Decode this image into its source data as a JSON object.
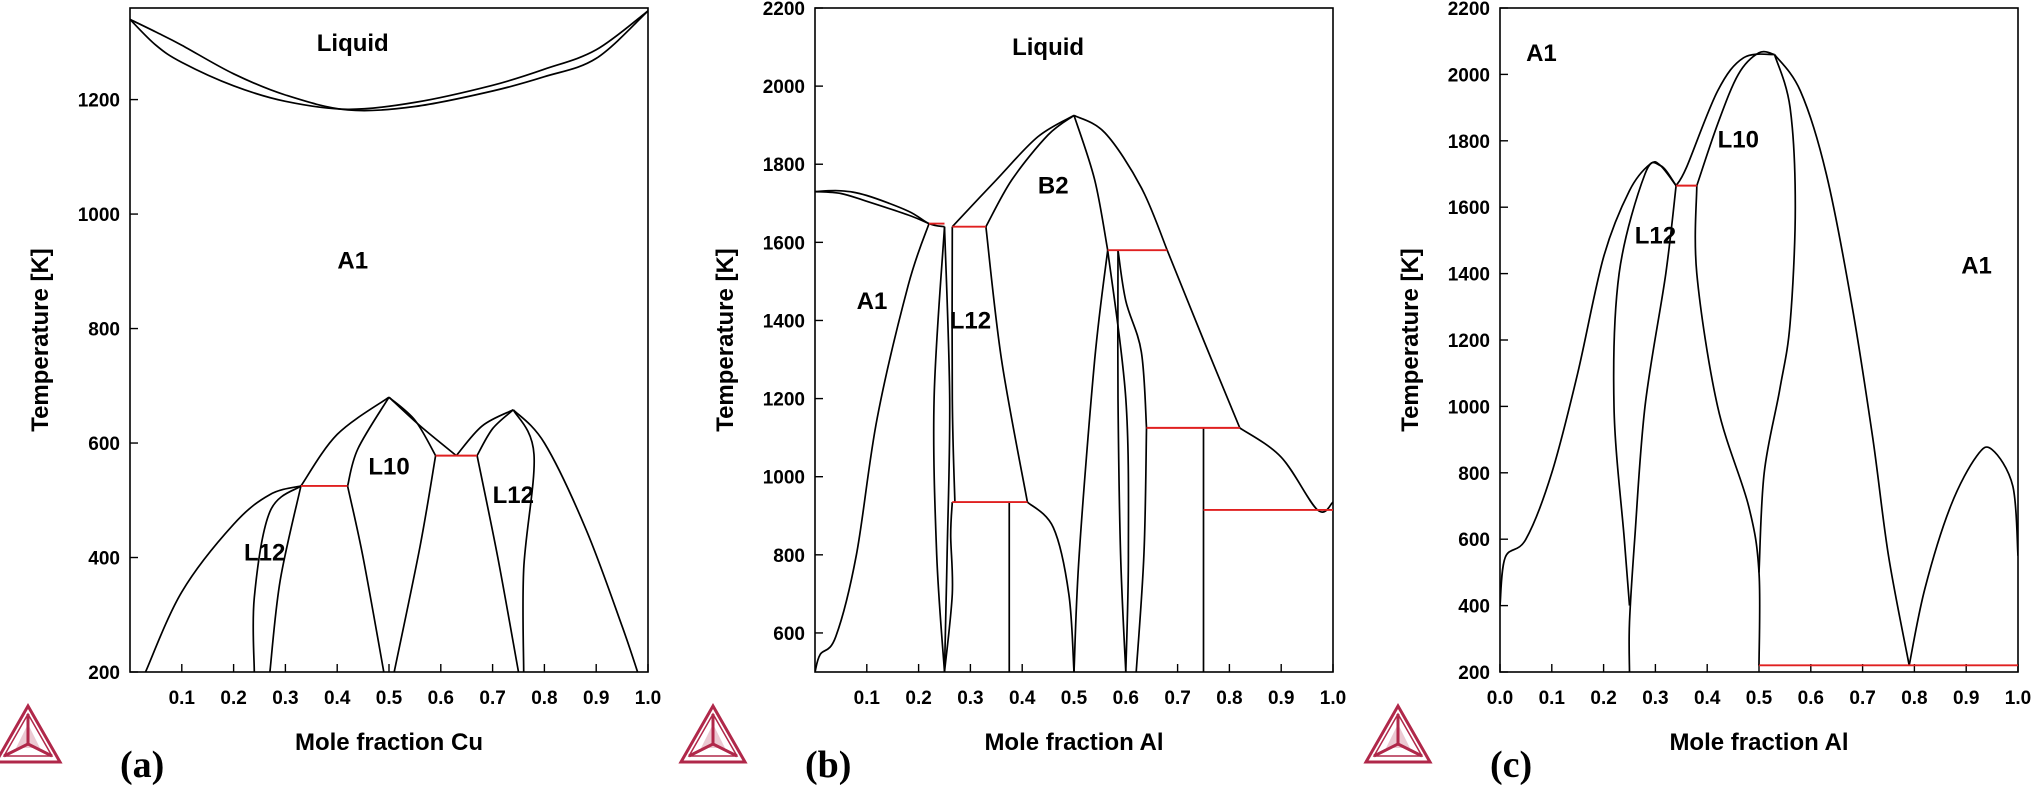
{
  "colors": {
    "phase_boundary": "#000000",
    "tie_line": "#e02020",
    "logo": "#b0284a"
  },
  "icons": [
    "thermo-calc-triangle-logo-icon"
  ],
  "chart_data": [
    {
      "type": "line",
      "panel_label": "(a)",
      "xlabel": "Mole fraction Cu",
      "ylabel": "Temperature [K]",
      "xlim": [
        0,
        1
      ],
      "ylim": [
        200,
        1360
      ],
      "xticks": [
        0.1,
        0.2,
        0.3,
        0.4,
        0.5,
        0.6,
        0.7,
        0.8,
        0.9,
        1.0
      ],
      "xtick_labels": [
        "0.1",
        "0.2",
        "0.3",
        "0.4",
        "0.5",
        "0.6",
        "0.7",
        "0.8",
        "0.9",
        "1.0"
      ],
      "yticks": [
        200,
        400,
        600,
        800,
        1000,
        1200
      ],
      "ytick_labels": [
        "200",
        "400",
        "600",
        "800",
        "1000",
        "1200"
      ],
      "grid": false,
      "phase_labels": [
        {
          "text": "Liquid",
          "x": 0.43,
          "y": 1285
        },
        {
          "text": "A1",
          "x": 0.43,
          "y": 905
        },
        {
          "text": "L12",
          "x": 0.26,
          "y": 395
        },
        {
          "text": "L10",
          "x": 0.5,
          "y": 545
        },
        {
          "text": "L12",
          "x": 0.74,
          "y": 495
        }
      ],
      "curves": [
        [
          [
            0,
            1340
          ],
          [
            0.05,
            1295
          ],
          [
            0.1,
            1265
          ],
          [
            0.2,
            1224
          ],
          [
            0.3,
            1197
          ],
          [
            0.42,
            1183
          ],
          [
            0.55,
            1195
          ],
          [
            0.7,
            1225
          ],
          [
            0.8,
            1253
          ],
          [
            0.9,
            1287
          ],
          [
            1.0,
            1355
          ]
        ],
        [
          [
            0,
            1340
          ],
          [
            0.05,
            1318
          ],
          [
            0.1,
            1295
          ],
          [
            0.2,
            1245
          ],
          [
            0.3,
            1208
          ],
          [
            0.42,
            1182
          ],
          [
            0.55,
            1188
          ],
          [
            0.7,
            1215
          ],
          [
            0.8,
            1240
          ],
          [
            0.9,
            1272
          ],
          [
            1.0,
            1355
          ]
        ],
        [
          [
            0.03,
            200
          ],
          [
            0.1,
            340
          ],
          [
            0.2,
            458
          ],
          [
            0.27,
            510
          ],
          [
            0.33,
            525
          ]
        ],
        [
          [
            0.24,
            200
          ],
          [
            0.24,
            330
          ],
          [
            0.27,
            480
          ],
          [
            0.33,
            525
          ]
        ],
        [
          [
            0.27,
            200
          ],
          [
            0.29,
            360
          ],
          [
            0.33,
            525
          ]
        ],
        [
          [
            0.33,
            525
          ],
          [
            0.4,
            615
          ],
          [
            0.5,
            680
          ]
        ],
        [
          [
            0.42,
            525
          ],
          [
            0.44,
            590
          ],
          [
            0.5,
            680
          ]
        ],
        [
          [
            0.42,
            525
          ],
          [
            0.45,
            400
          ],
          [
            0.49,
            200
          ]
        ],
        [
          [
            0.51,
            200
          ],
          [
            0.56,
            420
          ],
          [
            0.59,
            578
          ]
        ],
        [
          [
            0.5,
            680
          ],
          [
            0.56,
            630
          ],
          [
            0.63,
            578
          ]
        ],
        [
          [
            0.5,
            680
          ],
          [
            0.55,
            640
          ],
          [
            0.59,
            578
          ]
        ],
        [
          [
            0.63,
            578
          ],
          [
            0.68,
            630
          ],
          [
            0.74,
            658
          ]
        ],
        [
          [
            0.67,
            578
          ],
          [
            0.7,
            625
          ],
          [
            0.74,
            658
          ]
        ],
        [
          [
            0.67,
            578
          ],
          [
            0.71,
            400
          ],
          [
            0.75,
            200
          ]
        ],
        [
          [
            0.74,
            658
          ],
          [
            0.78,
            580
          ],
          [
            0.76,
            380
          ],
          [
            0.76,
            200
          ]
        ],
        [
          [
            0.74,
            658
          ],
          [
            0.8,
            600
          ],
          [
            0.88,
            450
          ],
          [
            0.95,
            280
          ],
          [
            0.98,
            200
          ]
        ]
      ],
      "tie_lines": [
        [
          [
            0.33,
            525
          ],
          [
            0.42,
            525
          ]
        ],
        [
          [
            0.59,
            578
          ],
          [
            0.67,
            578
          ]
        ]
      ]
    },
    {
      "type": "line",
      "panel_label": "(b)",
      "xlabel": "Mole fraction Al",
      "ylabel": "Temperature [K]",
      "xlim": [
        0,
        1
      ],
      "ylim": [
        500,
        2200
      ],
      "xticks": [
        0.1,
        0.2,
        0.3,
        0.4,
        0.5,
        0.6,
        0.7,
        0.8,
        0.9,
        1.0
      ],
      "xtick_labels": [
        "0.1",
        "0.2",
        "0.3",
        "0.4",
        "0.5",
        "0.6",
        "0.7",
        "0.8",
        "0.9",
        "1.0"
      ],
      "yticks": [
        600,
        800,
        1000,
        1200,
        1400,
        1600,
        1800,
        2000,
        2200
      ],
      "ytick_labels": [
        "600",
        "800",
        "1000",
        "1200",
        "1400",
        "1600",
        "1800",
        "2000",
        "2200"
      ],
      "grid": false,
      "phase_labels": [
        {
          "text": "Liquid",
          "x": 0.45,
          "y": 2080
        },
        {
          "text": "B2",
          "x": 0.46,
          "y": 1725
        },
        {
          "text": "A1",
          "x": 0.11,
          "y": 1430
        },
        {
          "text": "L12",
          "x": 0.3,
          "y": 1380
        }
      ],
      "curves": [
        [
          [
            0,
            1730
          ],
          [
            0.05,
            1732
          ],
          [
            0.1,
            1720
          ],
          [
            0.18,
            1680
          ],
          [
            0.22,
            1648
          ],
          [
            0.25,
            1640
          ]
        ],
        [
          [
            0,
            1730
          ],
          [
            0.05,
            1725
          ],
          [
            0.1,
            1705
          ],
          [
            0.18,
            1670
          ],
          [
            0.22,
            1648
          ]
        ],
        [
          [
            0,
            500
          ],
          [
            0.01,
            545
          ],
          [
            0.04,
            590
          ],
          [
            0.08,
            800
          ],
          [
            0.12,
            1150
          ],
          [
            0.18,
            1490
          ],
          [
            0.22,
            1648
          ]
        ],
        [
          [
            0.25,
            1640
          ],
          [
            0.23,
            1200
          ],
          [
            0.235,
            800
          ],
          [
            0.25,
            500
          ]
        ],
        [
          [
            0.25,
            1640
          ],
          [
            0.26,
            1200
          ],
          [
            0.255,
            800
          ],
          [
            0.25,
            500
          ]
        ],
        [
          [
            0.265,
            1640
          ],
          [
            0.265,
            1200
          ],
          [
            0.27,
            935
          ]
        ],
        [
          [
            0.265,
            935
          ],
          [
            0.262,
            850
          ],
          [
            0.265,
            700
          ],
          [
            0.25,
            500
          ]
        ],
        [
          [
            0.33,
            1640
          ],
          [
            0.36,
            1300
          ],
          [
            0.41,
            935
          ]
        ],
        [
          [
            0.265,
            1640
          ],
          [
            0.35,
            1760
          ],
          [
            0.43,
            1870
          ],
          [
            0.5,
            1925
          ]
        ],
        [
          [
            0.33,
            1640
          ],
          [
            0.38,
            1760
          ],
          [
            0.45,
            1875
          ],
          [
            0.5,
            1925
          ]
        ],
        [
          [
            0.5,
            1925
          ],
          [
            0.54,
            1760
          ],
          [
            0.565,
            1580
          ]
        ],
        [
          [
            0.5,
            1925
          ],
          [
            0.56,
            1880
          ],
          [
            0.63,
            1740
          ],
          [
            0.68,
            1580
          ]
        ],
        [
          [
            0.41,
            935
          ],
          [
            0.46,
            870
          ],
          [
            0.49,
            700
          ],
          [
            0.5,
            500
          ]
        ],
        [
          [
            0.565,
            1580
          ],
          [
            0.54,
            1300
          ],
          [
            0.51,
            800
          ],
          [
            0.5,
            500
          ]
        ],
        [
          [
            0.565,
            1580
          ],
          [
            0.6,
            1200
          ],
          [
            0.605,
            800
          ],
          [
            0.6,
            500
          ]
        ],
        [
          [
            0.585,
            1580
          ],
          [
            0.585,
            1200
          ],
          [
            0.59,
            800
          ],
          [
            0.6,
            500
          ]
        ],
        [
          [
            0.585,
            1580
          ],
          [
            0.6,
            1450
          ],
          [
            0.63,
            1320
          ],
          [
            0.64,
            1125
          ]
        ],
        [
          [
            0.64,
            1125
          ],
          [
            0.635,
            800
          ],
          [
            0.62,
            500
          ]
        ],
        [
          [
            0.68,
            1580
          ],
          [
            0.75,
            1350
          ],
          [
            0.82,
            1125
          ]
        ],
        [
          [
            0.82,
            1125
          ],
          [
            0.9,
            1050
          ],
          [
            0.97,
            915
          ],
          [
            1.0,
            935
          ]
        ]
      ],
      "vertical_lines": [
        [
          [
            0.375,
            500
          ],
          [
            0.375,
            935
          ]
        ],
        [
          [
            0.75,
            500
          ],
          [
            0.75,
            1125
          ]
        ]
      ],
      "tie_lines": [
        [
          [
            0.22,
            1648
          ],
          [
            0.25,
            1648
          ]
        ],
        [
          [
            0.265,
            1640
          ],
          [
            0.33,
            1640
          ]
        ],
        [
          [
            0.265,
            935
          ],
          [
            0.41,
            935
          ]
        ],
        [
          [
            0.565,
            1580
          ],
          [
            0.68,
            1580
          ]
        ],
        [
          [
            0.64,
            1125
          ],
          [
            0.82,
            1125
          ]
        ],
        [
          [
            0.75,
            915
          ],
          [
            1.0,
            915
          ]
        ]
      ]
    },
    {
      "type": "line",
      "panel_label": "(c)",
      "xlabel": "Mole fraction Al",
      "ylabel": "Temperature [K]",
      "xlim": [
        0,
        1
      ],
      "ylim": [
        200,
        2200
      ],
      "xticks": [
        0.0,
        0.1,
        0.2,
        0.3,
        0.4,
        0.5,
        0.6,
        0.7,
        0.8,
        0.9,
        1.0
      ],
      "xtick_labels": [
        "0.0",
        "0.1",
        "0.2",
        "0.3",
        "0.4",
        "0.5",
        "0.6",
        "0.7",
        "0.8",
        "0.9",
        "1.0"
      ],
      "yticks": [
        200,
        400,
        600,
        800,
        1000,
        1200,
        1400,
        1600,
        1800,
        2000,
        2200
      ],
      "ytick_labels": [
        "200",
        "400",
        "600",
        "800",
        "1000",
        "1200",
        "1400",
        "1600",
        "1800",
        "2000",
        "2200"
      ],
      "grid": false,
      "phase_labels": [
        {
          "text": "A1",
          "x": 0.08,
          "y": 2040
        },
        {
          "text": "L10",
          "x": 0.46,
          "y": 1780
        },
        {
          "text": "L12",
          "x": 0.3,
          "y": 1490
        },
        {
          "text": "A1",
          "x": 0.92,
          "y": 1400
        }
      ],
      "curves": [
        [
          [
            0,
            400
          ],
          [
            0.01,
            545
          ],
          [
            0.05,
            600
          ],
          [
            0.1,
            800
          ],
          [
            0.15,
            1100
          ],
          [
            0.2,
            1450
          ],
          [
            0.25,
            1650
          ],
          [
            0.29,
            1730
          ],
          [
            0.31,
            1725
          ],
          [
            0.34,
            1665
          ]
        ],
        [
          [
            0.25,
            400
          ],
          [
            0.24,
            600
          ],
          [
            0.22,
            1000
          ],
          [
            0.23,
            1400
          ],
          [
            0.28,
            1700
          ],
          [
            0.31,
            1725
          ],
          [
            0.34,
            1665
          ]
        ],
        [
          [
            0.25,
            200
          ],
          [
            0.25,
            350
          ],
          [
            0.26,
            600
          ],
          [
            0.28,
            1000
          ],
          [
            0.32,
            1400
          ],
          [
            0.34,
            1665
          ]
        ],
        [
          [
            0.38,
            1665
          ],
          [
            0.42,
            1850
          ],
          [
            0.46,
            2000
          ],
          [
            0.5,
            2065
          ],
          [
            0.53,
            2060
          ]
        ],
        [
          [
            0.34,
            1665
          ],
          [
            0.36,
            1720
          ],
          [
            0.42,
            1950
          ],
          [
            0.47,
            2050
          ],
          [
            0.53,
            2060
          ]
        ],
        [
          [
            0.38,
            1665
          ],
          [
            0.38,
            1400
          ],
          [
            0.42,
            1000
          ],
          [
            0.48,
            700
          ],
          [
            0.5,
            500
          ],
          [
            0.5,
            220
          ]
        ],
        [
          [
            0.53,
            2060
          ],
          [
            0.56,
            1900
          ],
          [
            0.57,
            1600
          ],
          [
            0.56,
            1250
          ],
          [
            0.54,
            1050
          ],
          [
            0.51,
            800
          ],
          [
            0.5,
            500
          ]
        ],
        [
          [
            0.53,
            2060
          ],
          [
            0.58,
            1950
          ],
          [
            0.63,
            1700
          ],
          [
            0.68,
            1300
          ],
          [
            0.72,
            900
          ],
          [
            0.75,
            550
          ],
          [
            0.79,
            220
          ]
        ],
        [
          [
            0.79,
            220
          ],
          [
            0.82,
            450
          ],
          [
            0.87,
            700
          ],
          [
            0.92,
            850
          ],
          [
            0.95,
            870
          ],
          [
            0.99,
            760
          ],
          [
            1.0,
            550
          ]
        ]
      ],
      "tie_lines": [
        [
          [
            0.34,
            1665
          ],
          [
            0.38,
            1665
          ]
        ],
        [
          [
            0.5,
            220
          ],
          [
            1.0,
            220
          ]
        ]
      ]
    }
  ]
}
